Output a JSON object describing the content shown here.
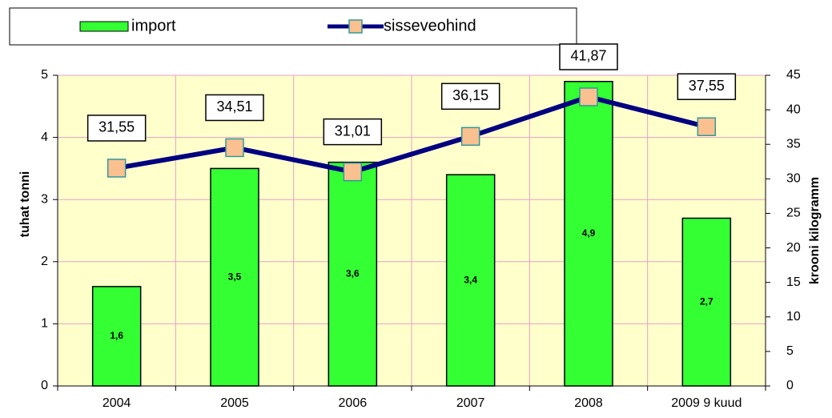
{
  "chart_data": {
    "type": "bar-line",
    "categories": [
      "2004",
      "2005",
      "2006",
      "2007",
      "2008",
      "2009 9 kuud"
    ],
    "series": [
      {
        "name": "import",
        "type": "bar",
        "color": "#33ff33",
        "values": [
          1.6,
          3.5,
          3.6,
          3.4,
          4.9,
          2.7
        ],
        "value_labels": [
          "1,6",
          "3,5",
          "3,6",
          "3,4",
          "4,9",
          "2,7"
        ]
      },
      {
        "name": "sisseveohind",
        "type": "line",
        "axis": "y2",
        "color": "#000080",
        "marker_color": "#fac090",
        "values": [
          31.55,
          34.51,
          31.01,
          36.15,
          41.87,
          37.55
        ],
        "value_labels": [
          "31,55",
          "34,51",
          "31,01",
          "36,15",
          "41,87",
          "37,55"
        ]
      }
    ],
    "ylabel": "tuhat tonni",
    "y2label": "krooni kilogramm",
    "ylim": [
      0,
      5
    ],
    "yticks": [
      0,
      1,
      2,
      3,
      4,
      5
    ],
    "y2lim": [
      0,
      45
    ],
    "y2ticks": [
      0,
      5,
      10,
      15,
      20,
      25,
      30,
      35,
      40,
      45
    ],
    "grid": true
  }
}
